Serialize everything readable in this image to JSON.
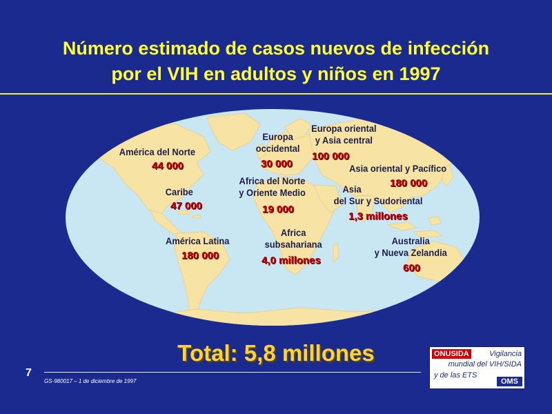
{
  "title": {
    "line1": "Número estimado de casos nuevos de infección",
    "line2": "por el VIH en adultos y niños en 1997"
  },
  "regions": [
    {
      "id": "norte",
      "label": [
        "América del Norte"
      ],
      "value": "44 000"
    },
    {
      "id": "caribe",
      "label": [
        "Caribe"
      ],
      "value": "47 000"
    },
    {
      "id": "latina",
      "label": [
        "América Latina"
      ],
      "value": "180 000"
    },
    {
      "id": "europa-occ",
      "label": [
        "Europa",
        "occidental"
      ],
      "value": "30 000"
    },
    {
      "id": "europa-or",
      "label": [
        "Europa oriental",
        "y Asia central"
      ],
      "value": "100 000"
    },
    {
      "id": "asia-or",
      "label": [
        "Asia oriental y Pacífico"
      ],
      "value": "180 000"
    },
    {
      "id": "africa-norte",
      "label": [
        "Africa del Norte",
        "y Oriente Medio"
      ],
      "value": "19 000"
    },
    {
      "id": "asia-sur",
      "label": [
        "Asia",
        "del Sur y Sudoriental"
      ],
      "value": "1,3 millones"
    },
    {
      "id": "africa-sub",
      "label": [
        "Africa",
        "subsahariana"
      ],
      "value": "4,0 millones"
    },
    {
      "id": "australia",
      "label": [
        "Australia",
        "y Nueva Zelandia"
      ],
      "value": "600"
    }
  ],
  "total": "Total: 5,8 millones",
  "slide_number": "7",
  "doc_code": "GS-980017 – 1 de diciembre de 1997",
  "logo": {
    "org": "ONUSIDA",
    "line1": "Vigilancia",
    "line2": "mundial del VIH/SIDA",
    "line3": "y de las ETS",
    "oms": "OMS"
  },
  "colors": {
    "background": "#1b2a8e",
    "title": "#ffff33",
    "ocean": "#c9e6f3",
    "land": "#f7e4a4",
    "value": "#c00000",
    "total": "#ffd23a"
  }
}
